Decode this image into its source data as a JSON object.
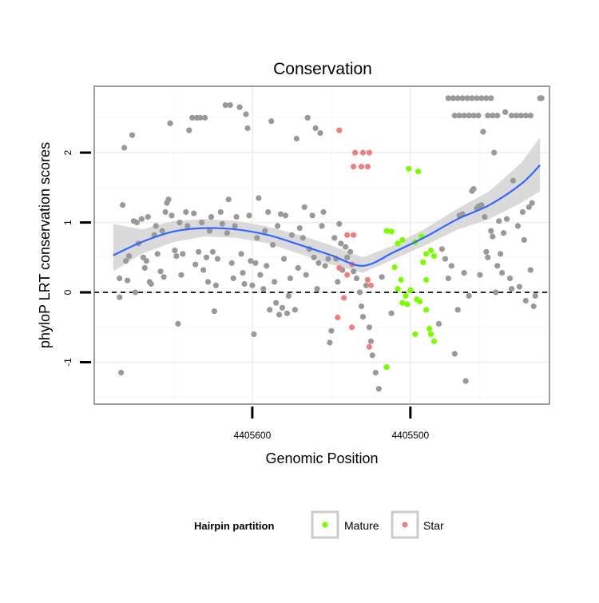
{
  "chart_data": {
    "type": "scatter",
    "title": "Conservation",
    "xlabel": "Genomic Position",
    "ylabel": "phyloP LRT conservation scores",
    "x_reversed": true,
    "xlim": [
      4405700,
      4405412
    ],
    "ylim": [
      -1.6,
      2.95
    ],
    "x_ticks": [
      4405600,
      4405500
    ],
    "x_tick_labels": [
      "4405600",
      "4405500"
    ],
    "y_ticks": [
      -1,
      0,
      1,
      2
    ],
    "y_tick_labels": [
      "-1",
      "0",
      "1",
      "2"
    ],
    "grid": true,
    "reference_line": {
      "y": 0,
      "style": "dashed"
    },
    "legend": {
      "title": "Hairpin partition",
      "placement": "bottom",
      "entries": [
        {
          "label": "Mature",
          "color": "#7CFC00"
        },
        {
          "label": "Star",
          "color": "#F08080"
        }
      ]
    },
    "colors": {
      "other": "#999999",
      "mature": "#7CFC00",
      "star": "#F08080",
      "smooth": "#3366FF",
      "band": "#D4D4D4"
    },
    "smooth": {
      "x": [
        4405688,
        4405670,
        4405650,
        4405630,
        4405610,
        4405590,
        4405570,
        4405550,
        4405530,
        4405510,
        4405490,
        4405470,
        4405450,
        4405430,
        4405418
      ],
      "y": [
        0.53,
        0.72,
        0.87,
        0.92,
        0.9,
        0.82,
        0.68,
        0.53,
        0.38,
        0.58,
        0.8,
        1.05,
        1.25,
        1.55,
        1.82
      ],
      "lower": [
        0.3,
        0.55,
        0.72,
        0.8,
        0.78,
        0.7,
        0.55,
        0.4,
        0.28,
        0.48,
        0.68,
        0.9,
        1.05,
        1.28,
        1.45
      ],
      "upper": [
        0.98,
        0.9,
        1.02,
        1.05,
        1.02,
        0.94,
        0.82,
        0.67,
        0.5,
        0.68,
        0.92,
        1.2,
        1.45,
        1.85,
        2.22
      ]
    },
    "series": [
      {
        "name": "Mature",
        "points": [
          [
            4405515,
            0.88
          ],
          [
            4405512,
            0.87
          ],
          [
            4405508,
            0.7
          ],
          [
            4405505,
            0.75
          ],
          [
            4405501,
            1.77
          ],
          [
            4405495,
            1.73
          ],
          [
            4405497,
            0.72
          ],
          [
            4405493,
            0.8
          ],
          [
            4405490,
            0.55
          ],
          [
            4405487,
            0.6
          ],
          [
            4405485,
            0.52
          ],
          [
            4405510,
            0.36
          ],
          [
            4405506,
            0.18
          ],
          [
            4405508,
            0.05
          ],
          [
            4405503,
            -0.05
          ],
          [
            4405500,
            0.03
          ],
          [
            4405505,
            -0.15
          ],
          [
            4405502,
            -0.17
          ],
          [
            4405496,
            -0.1
          ],
          [
            4405492,
            0.43
          ],
          [
            4405490,
            0.18
          ],
          [
            4405494,
            -0.13
          ],
          [
            4405490,
            -0.25
          ],
          [
            4405497,
            -0.6
          ],
          [
            4405488,
            -0.52
          ],
          [
            4405487,
            -0.6
          ],
          [
            4405485,
            -0.7
          ],
          [
            4405515,
            -1.07
          ]
        ]
      },
      {
        "name": "Star",
        "points": [
          [
            4405545,
            2.32
          ],
          [
            4405535,
            2.0
          ],
          [
            4405530,
            2.0
          ],
          [
            4405526,
            2.0
          ],
          [
            4405536,
            1.8
          ],
          [
            4405531,
            1.8
          ],
          [
            4405527,
            1.8
          ],
          [
            4405540,
            0.82
          ],
          [
            4405536,
            0.82
          ],
          [
            4405545,
            0.35
          ],
          [
            4405540,
            0.25
          ],
          [
            4405537,
            0.4
          ],
          [
            4405527,
            0.18
          ],
          [
            4405525,
            0.1
          ],
          [
            4405542,
            -0.08
          ],
          [
            4405546,
            -0.36
          ],
          [
            4405537,
            -0.5
          ],
          [
            4405526,
            -0.78
          ]
        ]
      },
      {
        "name": "",
        "points": [
          [
            4405684,
            0.2
          ],
          [
            4405684,
            -0.07
          ],
          [
            4405683,
            -1.15
          ],
          [
            4405682,
            1.25
          ],
          [
            4405681,
            2.07
          ],
          [
            4405680,
            0.45
          ],
          [
            4405679,
            0.17
          ],
          [
            4405678,
            0.52
          ],
          [
            4405676,
            2.25
          ],
          [
            4405675,
            1.02
          ],
          [
            4405674,
            0.0
          ],
          [
            4405673,
            1.0
          ],
          [
            4405672,
            0.7
          ],
          [
            4405670,
            1.05
          ],
          [
            4405669,
            0.5
          ],
          [
            4405668,
            0.35
          ],
          [
            4405667,
            0.45
          ],
          [
            4405666,
            1.08
          ],
          [
            4405665,
            0.15
          ],
          [
            4405664,
            0.12
          ],
          [
            4405662,
            0.82
          ],
          [
            4405661,
            0.95
          ],
          [
            4405660,
            0.55
          ],
          [
            4405658,
            0.3
          ],
          [
            4405657,
            0.88
          ],
          [
            4405656,
            0.22
          ],
          [
            4405655,
            1.15
          ],
          [
            4405654,
            1.28
          ],
          [
            4405653,
            1.33
          ],
          [
            4405652,
            2.42
          ],
          [
            4405651,
            1.1
          ],
          [
            4405649,
            0.6
          ],
          [
            4405648,
            0.52
          ],
          [
            4405647,
            -0.45
          ],
          [
            4405646,
            1.0
          ],
          [
            4405645,
            0.25
          ],
          [
            4405644,
            0.55
          ],
          [
            4405642,
            1.15
          ],
          [
            4405641,
            0.95
          ],
          [
            4405640,
            2.32
          ],
          [
            4405638,
            2.5
          ],
          [
            4405637,
            1.13
          ],
          [
            4405636,
            0.4
          ],
          [
            4405635,
            2.5
          ],
          [
            4405634,
            0.58
          ],
          [
            4405633,
            2.5
          ],
          [
            4405632,
            1.0
          ],
          [
            4405631,
            0.32
          ],
          [
            4405630,
            2.5
          ],
          [
            4405629,
            0.5
          ],
          [
            4405628,
            0.15
          ],
          [
            4405627,
            0.88
          ],
          [
            4405626,
            1.08
          ],
          [
            4405625,
            0.58
          ],
          [
            4405624,
            -0.27
          ],
          [
            4405623,
            0.1
          ],
          [
            4405622,
            0.48
          ],
          [
            4405620,
            1.15
          ],
          [
            4405619,
            0.98
          ],
          [
            4405617,
            2.68
          ],
          [
            4405616,
            0.85
          ],
          [
            4405615,
            1.33
          ],
          [
            4405614,
            2.68
          ],
          [
            4405613,
            0.42
          ],
          [
            4405612,
            0.2
          ],
          [
            4405611,
            0.95
          ],
          [
            4405610,
            1.08
          ],
          [
            4405608,
            2.65
          ],
          [
            4405607,
            0.55
          ],
          [
            4405606,
            0.28
          ],
          [
            4405605,
            0.12
          ],
          [
            4405604,
            2.55
          ],
          [
            4405603,
            2.35
          ],
          [
            4405602,
            1.1
          ],
          [
            4405601,
            0.45
          ],
          [
            4405600,
            0.1
          ],
          [
            4405599,
            -0.6
          ],
          [
            4405598,
            0.42
          ],
          [
            4405597,
            0.78
          ],
          [
            4405596,
            1.35
          ],
          [
            4405595,
            0.25
          ],
          [
            4405593,
            0.05
          ],
          [
            4405592,
            0.88
          ],
          [
            4405591,
            0.38
          ],
          [
            4405590,
            1.15
          ],
          [
            4405589,
            -0.25
          ],
          [
            4405588,
            2.45
          ],
          [
            4405587,
            0.68
          ],
          [
            4405586,
            0.15
          ],
          [
            4405585,
            -0.15
          ],
          [
            4405584,
            0.95
          ],
          [
            4405583,
            -0.32
          ],
          [
            4405582,
            1.12
          ],
          [
            4405581,
            -0.22
          ],
          [
            4405580,
            0.48
          ],
          [
            4405579,
            1.1
          ],
          [
            4405578,
            -0.3
          ],
          [
            4405577,
            -0.05
          ],
          [
            4405576,
            0.2
          ],
          [
            4405575,
            0.82
          ],
          [
            4405573,
            -0.25
          ],
          [
            4405572,
            2.2
          ],
          [
            4405571,
            0.35
          ],
          [
            4405570,
            0.92
          ],
          [
            4405568,
            0.78
          ],
          [
            4405567,
            1.22
          ],
          [
            4405566,
            0.25
          ],
          [
            4405565,
            2.5
          ],
          [
            4405564,
            0.62
          ],
          [
            4405562,
            1.1
          ],
          [
            4405561,
            0.5
          ],
          [
            4405560,
            2.35
          ],
          [
            4405559,
            0.05
          ],
          [
            4405558,
            0.42
          ],
          [
            4405557,
            2.28
          ],
          [
            4405556,
            0.95
          ],
          [
            4405555,
            1.15
          ],
          [
            4405554,
            0.38
          ],
          [
            4405552,
            0.48
          ],
          [
            4405551,
            -0.72
          ],
          [
            4405550,
            -0.55
          ],
          [
            4405548,
            0.78
          ],
          [
            4405547,
            0.48
          ],
          [
            4405546,
            0.15
          ],
          [
            4405545,
            0.98
          ],
          [
            4405544,
            0.7
          ],
          [
            4405543,
            0.32
          ],
          [
            4405541,
            0.65
          ],
          [
            4405540,
            0.5
          ],
          [
            4405538,
            0.58
          ],
          [
            4405536,
            0.3
          ],
          [
            4405534,
            0.2
          ],
          [
            4405532,
            0.0
          ],
          [
            4405531,
            -0.2
          ],
          [
            4405530,
            -0.35
          ],
          [
            4405528,
            0.1
          ],
          [
            4405526,
            -0.5
          ],
          [
            4405525,
            -0.7
          ],
          [
            4405524,
            -0.9
          ],
          [
            4405522,
            -1.15
          ],
          [
            4405520,
            -1.38
          ],
          [
            4405518,
            0.22
          ],
          [
            4405512,
            -0.3
          ],
          [
            4405482,
            -0.45
          ],
          [
            4405480,
            0.62
          ],
          [
            4405478,
            0.48
          ],
          [
            4405476,
            0.2
          ],
          [
            4405474,
            0.38
          ],
          [
            4405472,
            -0.88
          ],
          [
            4405470,
            -0.25
          ],
          [
            4405469,
            1.1
          ],
          [
            4405467,
            1.12
          ],
          [
            4405466,
            0.28
          ],
          [
            4405465,
            -1.27
          ],
          [
            4405463,
            -0.05
          ],
          [
            4405461,
            1.45
          ],
          [
            4405460,
            1.48
          ],
          [
            4405458,
            1.2
          ],
          [
            4405457,
            1.23
          ],
          [
            4405456,
            0.25
          ],
          [
            4405455,
            1.25
          ],
          [
            4405454,
            2.3
          ],
          [
            4405453,
            1.08
          ],
          [
            4405452,
            0.58
          ],
          [
            4405451,
            0.5
          ],
          [
            4405449,
            0.88
          ],
          [
            4405448,
            0.8
          ],
          [
            4405447,
            2.0
          ],
          [
            4405446,
            0.0
          ],
          [
            4405445,
            0.38
          ],
          [
            4405444,
            1.02
          ],
          [
            4405443,
            0.55
          ],
          [
            4405442,
            0.28
          ],
          [
            4405441,
            0.85
          ],
          [
            4405440,
            2.58
          ],
          [
            4405439,
            1.05
          ],
          [
            4405437,
            0.2
          ],
          [
            4405436,
            0.05
          ],
          [
            4405435,
            1.6
          ],
          [
            4405432,
            0.95
          ],
          [
            4405431,
            0.08
          ],
          [
            4405429,
            1.15
          ],
          [
            4405428,
            0.75
          ],
          [
            4405427,
            -0.12
          ],
          [
            4405425,
            1.22
          ],
          [
            4405424,
            0.32
          ],
          [
            4405423,
            1.28
          ],
          [
            4405422,
            -0.2
          ],
          [
            4405421,
            -0.05
          ],
          [
            4405418,
            2.78
          ],
          [
            4405417,
            2.78
          ],
          [
            4405476,
            2.78
          ],
          [
            4405473,
            2.78
          ],
          [
            4405470,
            2.78
          ],
          [
            4405467,
            2.78
          ],
          [
            4405464,
            2.78
          ],
          [
            4405461,
            2.78
          ],
          [
            4405458,
            2.78
          ],
          [
            4405455,
            2.78
          ],
          [
            4405452,
            2.78
          ],
          [
            4405449,
            2.78
          ],
          [
            4405472,
            2.53
          ],
          [
            4405469,
            2.53
          ],
          [
            4405466,
            2.53
          ],
          [
            4405463,
            2.53
          ],
          [
            4405460,
            2.53
          ],
          [
            4405457,
            2.53
          ],
          [
            4405451,
            2.53
          ],
          [
            4405448,
            2.53
          ],
          [
            4405445,
            2.53
          ],
          [
            4405436,
            2.53
          ],
          [
            4405433,
            2.53
          ],
          [
            4405430,
            2.53
          ],
          [
            4405427,
            2.53
          ],
          [
            4405424,
            2.53
          ]
        ]
      }
    ]
  }
}
